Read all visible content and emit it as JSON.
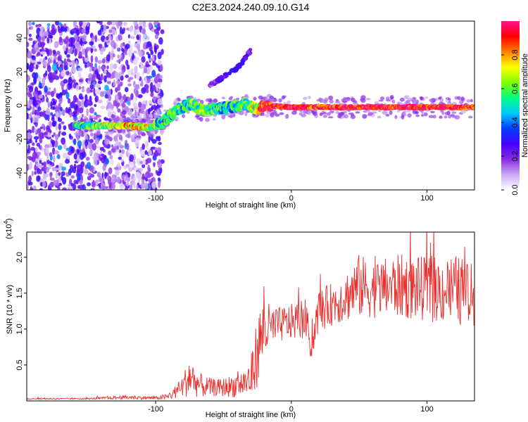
{
  "title": "C2E3.2024.240.09.10.G14",
  "colorbar": {
    "label": "Normalized spectral amplitude",
    "range": [
      0,
      1
    ],
    "ticks": [
      0.0,
      0.2,
      0.4,
      0.6,
      0.8
    ],
    "tick_labels": [
      "0.0",
      "0.2",
      "0.4",
      "0.6",
      "0.8"
    ],
    "colormap": [
      "#ffffff",
      "#c9a8f5",
      "#8a2be2",
      "#4400ff",
      "#0040ff",
      "#00c8ff",
      "#00ff80",
      "#80ff00",
      "#ffff00",
      "#ff8000",
      "#ff0000",
      "#ff1493"
    ]
  },
  "chart_data": [
    {
      "type": "heatmap",
      "title": "C2E3.2024.240.09.10.G14",
      "xlabel": "Height of straight line (km)",
      "ylabel": "Frequency (Hz)",
      "xlim": [
        -195,
        135
      ],
      "ylim": [
        -50,
        50
      ],
      "xticks": [
        -100,
        0,
        100
      ],
      "xtick_labels": [
        "-100",
        "0",
        "100"
      ],
      "yticks": [
        -40,
        -20,
        0,
        20,
        40
      ],
      "ytick_labels": [
        "-40",
        "-20",
        "0",
        "20",
        "40"
      ],
      "grid": false,
      "ridge": {
        "x": [
          -160,
          -140,
          -120,
          -105,
          -95,
          -85,
          -75,
          -65,
          -55,
          -45,
          -35,
          -25,
          -20,
          0,
          20,
          40,
          60,
          80,
          100,
          120,
          135
        ],
        "freq": [
          -12,
          -12,
          -12,
          -13,
          -10,
          -3,
          1,
          -3,
          -2,
          -1,
          1,
          -2,
          0,
          -1,
          -1,
          -1,
          -1,
          -1,
          -1,
          -1,
          -1
        ],
        "amplitude": [
          0.5,
          0.6,
          0.75,
          0.7,
          0.45,
          0.5,
          0.55,
          0.6,
          0.55,
          0.5,
          0.55,
          0.7,
          0.9,
          0.95,
          0.9,
          0.95,
          0.95,
          0.95,
          0.95,
          0.95,
          0.9
        ]
      },
      "branch": {
        "x": [
          -60,
          -55,
          -50,
          -45,
          -40,
          -35,
          -30
        ],
        "freq": [
          12,
          14,
          17,
          20,
          22,
          27,
          33
        ],
        "amplitude": [
          0.15,
          0.2,
          0.25,
          0.3,
          0.3,
          0.25,
          0.2
        ]
      },
      "noise_region_x": [
        -195,
        -95
      ]
    },
    {
      "type": "line",
      "title": "",
      "xlabel": "Height of straight line (km)",
      "ylabel": "SNR (10 * v/v)",
      "yscale_label": "(x10",
      "yscale_exp": "4",
      "yscale_close": ")",
      "xlim": [
        -195,
        135
      ],
      "ylim": [
        0,
        2.35
      ],
      "xticks": [
        -100,
        0,
        100
      ],
      "xtick_labels": [
        "-100",
        "0",
        "100"
      ],
      "yticks": [
        0.5,
        1.0,
        1.5,
        2.0
      ],
      "ytick_labels": [
        "0.5",
        "1.0",
        "1.5",
        "2.0"
      ],
      "grid": false,
      "color": "#e8302e",
      "envelope": {
        "x": [
          -195,
          -150,
          -120,
          -100,
          -90,
          -80,
          -75,
          -70,
          -65,
          -55,
          -45,
          -35,
          -30,
          -25,
          -22,
          -20,
          -15,
          -10,
          0,
          10,
          15,
          20,
          30,
          40,
          50,
          60,
          80,
          100,
          120,
          135
        ],
        "base": [
          0.03,
          0.03,
          0.05,
          0.04,
          0.06,
          0.2,
          0.35,
          0.25,
          0.2,
          0.18,
          0.2,
          0.25,
          0.3,
          0.7,
          0.9,
          1.0,
          1.0,
          1.05,
          1.1,
          1.15,
          0.75,
          1.25,
          1.35,
          1.45,
          1.6,
          1.55,
          1.6,
          1.55,
          1.55,
          1.45
        ],
        "amp": [
          0.01,
          0.01,
          0.03,
          0.02,
          0.05,
          0.15,
          0.3,
          0.2,
          0.15,
          0.12,
          0.15,
          0.2,
          0.3,
          0.5,
          0.5,
          0.4,
          0.35,
          0.25,
          0.25,
          0.3,
          0.2,
          0.3,
          0.3,
          0.35,
          0.45,
          0.4,
          0.45,
          0.45,
          0.5,
          0.45
        ]
      }
    }
  ]
}
